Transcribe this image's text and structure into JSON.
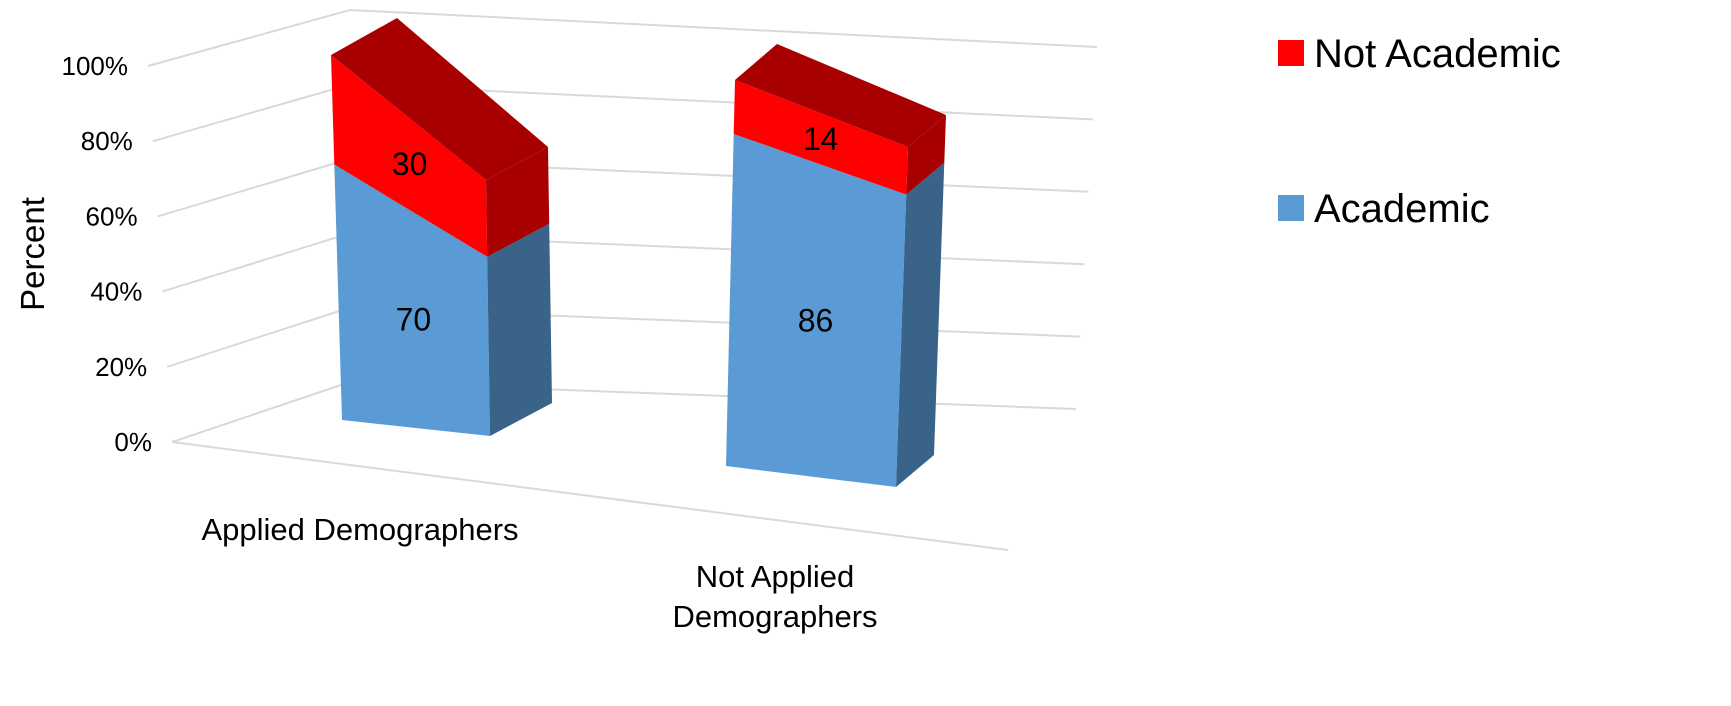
{
  "chart_data": {
    "type": "bar",
    "stacked": true,
    "three_d": true,
    "title": "",
    "xlabel": "",
    "ylabel": "Percent",
    "ylim": [
      0,
      100
    ],
    "y_ticks": [
      "0%",
      "20%",
      "40%",
      "60%",
      "80%",
      "100%"
    ],
    "categories": [
      [
        "Applied Demographers"
      ],
      [
        "Not Applied",
        "Demographers"
      ]
    ],
    "series": [
      {
        "name": "Academic",
        "values": [
          70,
          86
        ],
        "color": "#5b9bd5",
        "side_color": "#3a6389"
      },
      {
        "name": "Not Academic",
        "values": [
          30,
          14
        ],
        "color": "#ff0000",
        "side_color": "#a80000"
      }
    ],
    "data_labels": true,
    "grid": true,
    "legend": {
      "position": "right",
      "order": [
        "Not Academic",
        "Academic"
      ]
    }
  }
}
